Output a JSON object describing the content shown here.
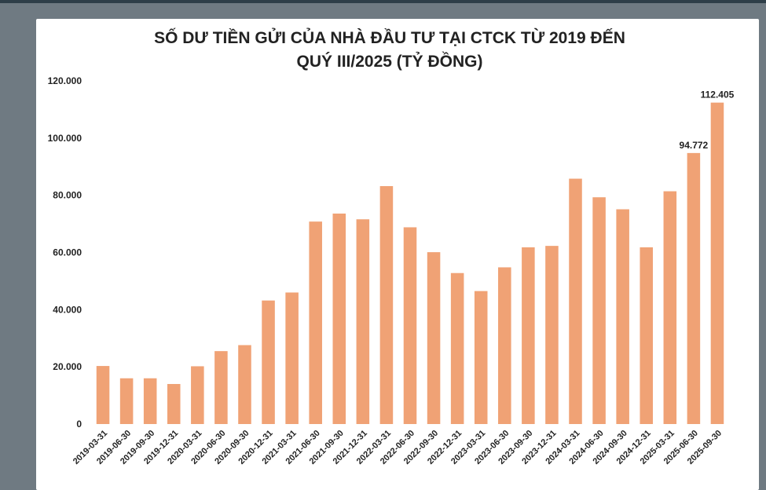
{
  "chart_data": {
    "type": "bar",
    "title_line1": "SỐ DƯ TIỀN GỬI CỦA NHÀ ĐẦU TƯ TẠI CTCK TỪ 2019 ĐẾN",
    "title_line2": "QUÝ III/2025 (TỶ ĐỒNG)",
    "xlabel": "",
    "ylabel": "",
    "ylim": [
      0,
      120000
    ],
    "yticks": [
      "0",
      "20.000",
      "40.000",
      "60.000",
      "80.000",
      "100.000",
      "120.000"
    ],
    "grid": false,
    "bar_color": "#f0a275",
    "categories": [
      "2019-03-31",
      "2019-06-30",
      "2019-09-30",
      "2019-12-31",
      "2020-03-31",
      "2020-06-30",
      "2020-09-30",
      "2020-12-31",
      "2021-03-31",
      "2021-06-30",
      "2021-09-30",
      "2021-12-31",
      "2022-03-31",
      "2022-06-30",
      "2022-09-30",
      "2022-12-31",
      "2023-03-31",
      "2023-06-30",
      "2023-09-30",
      "2023-12-31",
      "2024-03-31",
      "2024-06-30",
      "2024-09-30",
      "2024-12-31",
      "2025-03-31",
      "2025-06-30",
      "2025-09-30"
    ],
    "values": [
      20300,
      16000,
      16000,
      14000,
      20200,
      25500,
      27600,
      43200,
      46000,
      70800,
      73600,
      71600,
      83200,
      68800,
      60100,
      52800,
      46500,
      54800,
      61800,
      62300,
      85800,
      79300,
      75100,
      61800,
      81400,
      94772,
      112405
    ],
    "data_labels": [
      {
        "index": 25,
        "text": "94.772"
      },
      {
        "index": 26,
        "text": "112.405"
      }
    ]
  }
}
